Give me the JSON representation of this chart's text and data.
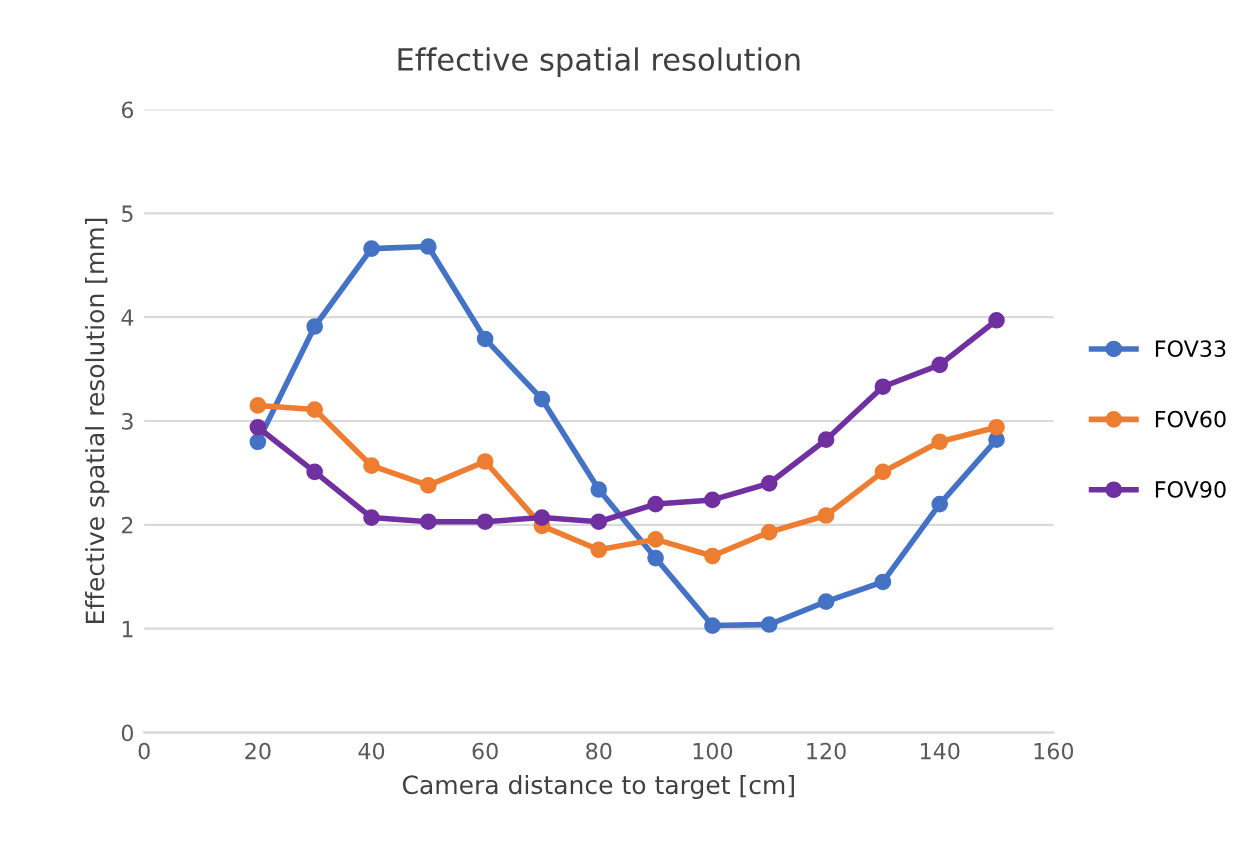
{
  "chart_data": {
    "type": "line",
    "title": "Effective spatial resolution",
    "xlabel": "Camera distance to target [cm]",
    "ylabel": "Effective spatial resolution [mm]",
    "x": [
      20,
      30,
      40,
      50,
      60,
      70,
      80,
      90,
      100,
      110,
      120,
      130,
      140,
      150
    ],
    "series": [
      {
        "name": "FOV33",
        "color": "#4472c4",
        "values": [
          2.8,
          3.91,
          4.66,
          4.68,
          3.79,
          3.21,
          2.34,
          1.68,
          1.03,
          1.04,
          1.26,
          1.45,
          2.2,
          2.82
        ]
      },
      {
        "name": "FOV60",
        "color": "#ed7d31",
        "values": [
          3.15,
          3.11,
          2.57,
          2.38,
          2.61,
          1.99,
          1.76,
          1.86,
          1.7,
          1.93,
          2.09,
          2.51,
          2.8,
          2.94
        ]
      },
      {
        "name": "FOV90",
        "color": "#7030a0",
        "values": [
          2.94,
          2.51,
          2.07,
          2.03,
          2.03,
          2.07,
          2.03,
          2.2,
          2.24,
          2.4,
          2.82,
          3.33,
          3.54,
          3.97
        ]
      }
    ],
    "xlim": [
      0,
      160
    ],
    "xticks": [
      0,
      20,
      40,
      60,
      80,
      100,
      120,
      140,
      160
    ],
    "ylim": [
      0,
      6
    ],
    "yticks": [
      0,
      1,
      2,
      3,
      4,
      5,
      6
    ],
    "grid": "y",
    "legend": "right",
    "marker": "circle",
    "line_style": "solid"
  }
}
